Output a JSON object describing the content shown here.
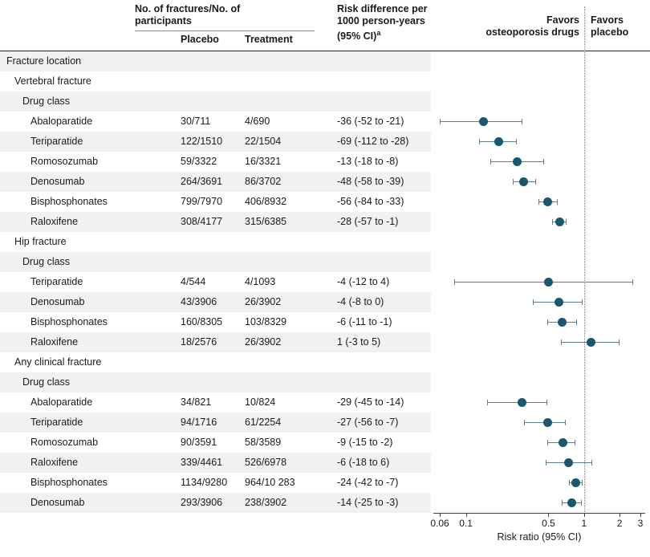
{
  "figure": {
    "header": {
      "group_line1": "No. of fractures/No. of",
      "group_line2": "participants",
      "placebo": "Placebo",
      "treatment": "Treatment",
      "risk_diff_line1": "Risk difference per",
      "risk_diff_line2": "1000 person-years",
      "risk_diff_line3": "(95% CI)",
      "risk_diff_sup": "a",
      "favors_left_line1": "Favors",
      "favors_left_line2": "osteoporosis drugs",
      "favors_right_line1": "Favors",
      "favors_right_line2": "placebo"
    },
    "axis": {
      "label": "Risk ratio (95% CI)",
      "scale": "log",
      "min": 0.06,
      "max": 3,
      "reference": 1,
      "ticks": [
        0.06,
        0.1,
        0.5,
        1,
        2,
        3
      ],
      "tick_labels": [
        "0.06",
        "0.1",
        "0.5",
        "1",
        "2",
        "3"
      ]
    },
    "colors": {
      "dot": "#17586e",
      "ci_line": "#5f7d8a",
      "stripe": "#f1f1f1",
      "ref_line": "#8a8a8a",
      "text": "#1a1a1a"
    }
  },
  "chart_data": {
    "type": "forest",
    "x_scale": "log",
    "x_label": "Risk ratio (95% CI)",
    "x_ticks": [
      0.06,
      0.1,
      0.5,
      1,
      2,
      3
    ],
    "x_range": [
      0.06,
      3
    ],
    "reference_line": 1,
    "favors_left": "Favors osteoporosis drugs",
    "favors_right": "Favors placebo",
    "rows": [
      {
        "kind": "section",
        "level": 0,
        "label": "Fracture location"
      },
      {
        "kind": "section",
        "level": 1,
        "label": "Vertebral fracture"
      },
      {
        "kind": "section",
        "level": 2,
        "label": "Drug class"
      },
      {
        "kind": "data",
        "level": 3,
        "label": "Abaloparatide",
        "placebo": "30/711",
        "treatment": "4/690",
        "risk_diff": "-36 (-52 to -21)",
        "rr": 0.14,
        "ci_low": 0.06,
        "ci_high": 0.3
      },
      {
        "kind": "data",
        "level": 3,
        "label": "Teriparatide",
        "placebo": "122/1510",
        "treatment": "22/1504",
        "risk_diff": "-69 (-112 to -28)",
        "rr": 0.19,
        "ci_low": 0.13,
        "ci_high": 0.27
      },
      {
        "kind": "data",
        "level": 3,
        "label": "Romosozumab",
        "placebo": "59/3322",
        "treatment": "16/3321",
        "risk_diff": "-13 (-18 to -8)",
        "rr": 0.27,
        "ci_low": 0.16,
        "ci_high": 0.46
      },
      {
        "kind": "data",
        "level": 3,
        "label": "Denosumab",
        "placebo": "264/3691",
        "treatment": "86/3702",
        "risk_diff": "-48 (-58 to -39)",
        "rr": 0.31,
        "ci_low": 0.25,
        "ci_high": 0.39
      },
      {
        "kind": "data",
        "level": 3,
        "label": "Bisphosphonates",
        "placebo": "799/7970",
        "treatment": "406/8932",
        "risk_diff": "-56 (-84 to -33)",
        "rr": 0.49,
        "ci_low": 0.41,
        "ci_high": 0.6
      },
      {
        "kind": "data",
        "level": 3,
        "label": "Raloxifene",
        "placebo": "308/4177",
        "treatment": "315/6385",
        "risk_diff": "-28 (-57 to -1)",
        "rr": 0.62,
        "ci_low": 0.54,
        "ci_high": 0.71
      },
      {
        "kind": "section",
        "level": 1,
        "label": "Hip fracture"
      },
      {
        "kind": "section",
        "level": 2,
        "label": "Drug class"
      },
      {
        "kind": "data",
        "level": 3,
        "label": "Teriparatide",
        "placebo": "4/544",
        "treatment": "4/1093",
        "risk_diff": "-4 (-12 to 4)",
        "rr": 0.5,
        "ci_low": 0.08,
        "ci_high": 2.6
      },
      {
        "kind": "data",
        "level": 3,
        "label": "Denosumab",
        "placebo": "43/3906",
        "treatment": "26/3902",
        "risk_diff": "-4 (-8 to 0)",
        "rr": 0.61,
        "ci_low": 0.37,
        "ci_high": 0.98
      },
      {
        "kind": "data",
        "level": 3,
        "label": "Bisphosphonates",
        "placebo": "160/8305",
        "treatment": "103/8329",
        "risk_diff": "-6 (-11 to -1)",
        "rr": 0.65,
        "ci_low": 0.49,
        "ci_high": 0.87
      },
      {
        "kind": "data",
        "level": 3,
        "label": "Raloxifene",
        "placebo": "18/2576",
        "treatment": "26/3902",
        "risk_diff": "1 (-3 to 5)",
        "rr": 1.15,
        "ci_low": 0.64,
        "ci_high": 2.0
      },
      {
        "kind": "section",
        "level": 1,
        "label": "Any clinical fracture"
      },
      {
        "kind": "section",
        "level": 2,
        "label": "Drug class"
      },
      {
        "kind": "data",
        "level": 3,
        "label": "Abaloparatide",
        "placebo": "34/821",
        "treatment": "10/824",
        "risk_diff": "-29 (-45 to -14)",
        "rr": 0.3,
        "ci_low": 0.15,
        "ci_high": 0.49
      },
      {
        "kind": "data",
        "level": 3,
        "label": "Teriparatide",
        "placebo": "94/1716",
        "treatment": "61/2254",
        "risk_diff": "-27 (-56 to -7)",
        "rr": 0.49,
        "ci_low": 0.31,
        "ci_high": 0.7
      },
      {
        "kind": "data",
        "level": 3,
        "label": "Romosozumab",
        "placebo": "90/3591",
        "treatment": "58/3589",
        "risk_diff": "-9 (-15 to -2)",
        "rr": 0.66,
        "ci_low": 0.49,
        "ci_high": 0.85
      },
      {
        "kind": "data",
        "level": 3,
        "label": "Raloxifene",
        "placebo": "339/4461",
        "treatment": "526/6978",
        "risk_diff": "-6 (-18 to 6)",
        "rr": 0.74,
        "ci_low": 0.47,
        "ci_high": 1.18
      },
      {
        "kind": "data",
        "level": 3,
        "label": "Bisphosphonates",
        "placebo": "1134/9280",
        "treatment": "964/10 283",
        "risk_diff": "-24 (-42 to -7)",
        "rr": 0.85,
        "ci_low": 0.74,
        "ci_high": 0.97
      },
      {
        "kind": "data",
        "level": 3,
        "label": "Denosumab",
        "placebo": "293/3906",
        "treatment": "238/3902",
        "risk_diff": "-14 (-25 to -3)",
        "rr": 0.79,
        "ci_low": 0.65,
        "ci_high": 0.95
      }
    ]
  }
}
